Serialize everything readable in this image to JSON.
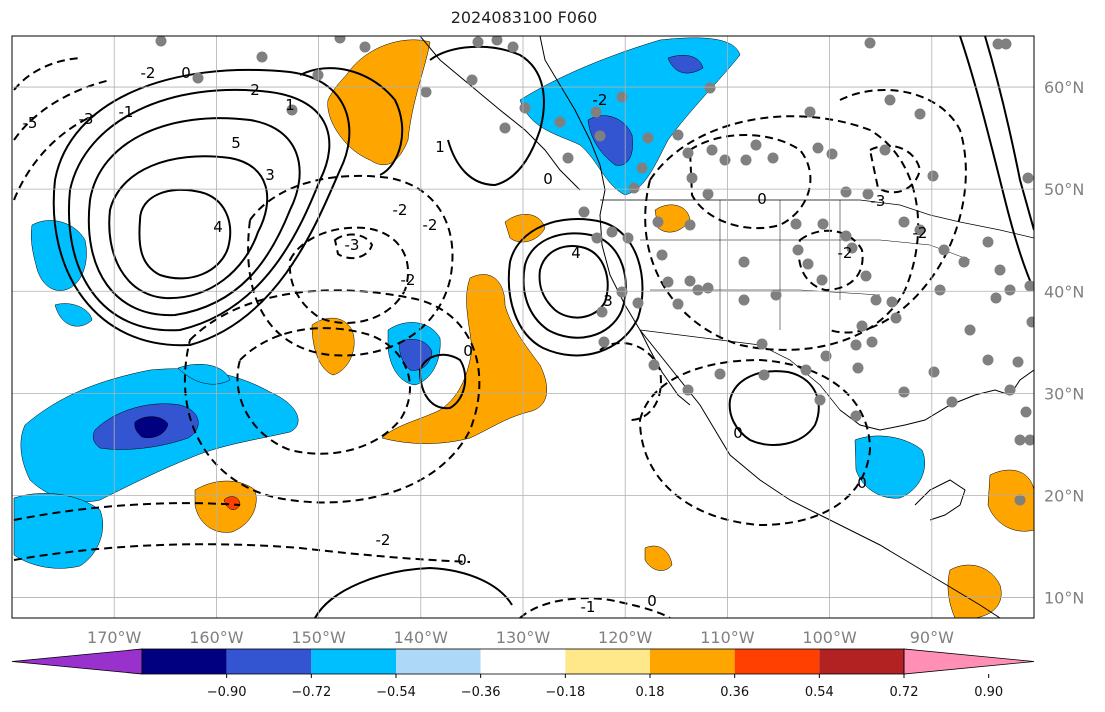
{
  "title": "2024083100 F060",
  "map": {
    "lon_range": [
      -180,
      -80
    ],
    "lat_range": [
      8,
      65
    ],
    "lon_ticks": [
      -170,
      -160,
      -150,
      -140,
      -130,
      -120,
      -110,
      -100,
      -90
    ],
    "lon_labels": [
      "170°W",
      "160°W",
      "150°W",
      "140°W",
      "130°W",
      "120°W",
      "110°W",
      "100°W",
      "90°W"
    ],
    "lat_ticks": [
      10,
      20,
      30,
      40,
      50,
      60
    ],
    "lat_labels": [
      "10°N",
      "20°N",
      "30°N",
      "40°N",
      "50°N",
      "60°N"
    ],
    "grid": true,
    "contour_labels": [
      "-5",
      "-3",
      "-1",
      "-2",
      "0",
      "5",
      "4",
      "3",
      "2",
      "1",
      "-2",
      "-3",
      "-2",
      "4",
      "3",
      "0",
      "-2",
      "0",
      "1",
      "-2",
      "-3",
      "0",
      "-2",
      "-2",
      "0",
      "-1",
      "0",
      "-2",
      "0",
      "0"
    ],
    "station_color": "#808080"
  },
  "colorbar": {
    "colors": [
      "#9932cc",
      "#000080",
      "#3455d1",
      "#00bfff",
      "#add8f7",
      "#ffffff",
      "#ffe88a",
      "#ffa500",
      "#ff4000",
      "#b22222",
      "#ff8fb4"
    ],
    "tick_labels": [
      "−0.90",
      "−0.72",
      "−0.54",
      "−0.36",
      "−0.18",
      "0.18",
      "0.36",
      "0.54",
      "0.72",
      "0.90"
    ]
  },
  "legend_ticks": []
}
